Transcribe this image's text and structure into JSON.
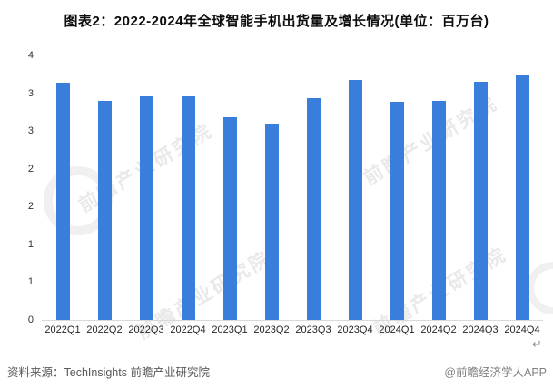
{
  "title": "图表2：2022-2024年全球智能手机出货量及增长情况(单位：百万台)",
  "chart_data": {
    "type": "bar",
    "title": "图表2：2022-2024年全球智能手机出货量及增长情况(单位：百万台)",
    "unit_label": "百万台",
    "categories": [
      "2022Q1",
      "2022Q2",
      "2022Q3",
      "2022Q4",
      "2023Q1",
      "2023Q2",
      "2023Q3",
      "2023Q4",
      "2024Q1",
      "2024Q2",
      "2024Q3",
      "2024Q4"
    ],
    "values": [
      3.14,
      2.9,
      2.96,
      2.96,
      2.68,
      2.6,
      2.94,
      3.17,
      2.89,
      2.9,
      3.15,
      3.25
    ],
    "ylim": [
      0,
      3.5
    ],
    "y_tick_labels": [
      "4",
      "3",
      "3",
      "2",
      "2",
      "1",
      "1",
      "0"
    ],
    "y_tick_values": [
      3.5,
      3.0,
      2.5,
      2.0,
      1.5,
      1.0,
      0.5,
      0
    ],
    "xlabel": "",
    "ylabel": "",
    "grid": false,
    "legend": "none",
    "bar_color": "#3a7edc",
    "axis_line_color": "#d9d9d9"
  },
  "footer": {
    "source": "资料来源：TechInsights 前瞻产业研究院",
    "credit": "@前瞻经济学人APP"
  },
  "watermark": {
    "text": "前瞻产业研究院"
  },
  "paragraph_mark": "↵"
}
